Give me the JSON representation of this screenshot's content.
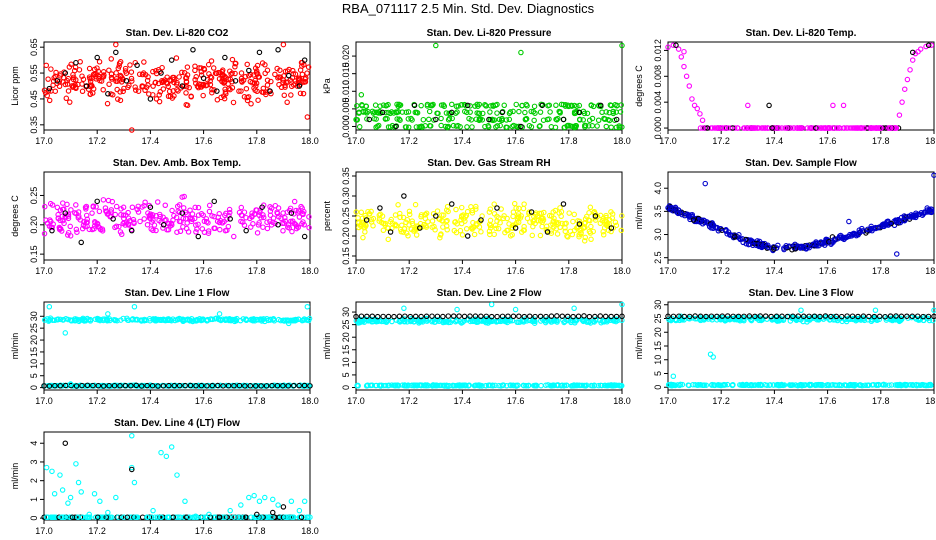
{
  "page_title": "RBA_071117  2.5 Min. Std. Dev. Diagnostics",
  "colors": {
    "red": "#ff0000",
    "green": "#00cc00",
    "magenta": "#ff00ff",
    "yellow": "#ffff00",
    "blue": "#0000cc",
    "cyan": "#00ffff",
    "black": "#000000"
  },
  "chart_data": [
    {
      "type": "scatter",
      "title": "Stan. Dev. Li-820 CO2",
      "ylabel": "Licor ppm",
      "xlim": [
        17.0,
        18.0
      ],
      "ylim": [
        0.33,
        0.67
      ],
      "xticks": [
        "17.0",
        "17.2",
        "17.4",
        "17.6",
        "17.8",
        "18.0"
      ],
      "yticks": [
        0.35,
        0.45,
        0.55,
        0.65
      ],
      "ytick_labels": [
        "0.35",
        "0.45",
        "0.55",
        "0.65"
      ],
      "color": "#ff0000",
      "points_description": "dense band of red points between 0.42 and 0.62 with black points scattered within",
      "main_band": [
        0.42,
        0.62
      ],
      "main_count": 380,
      "black_points": [
        [
          17.02,
          0.49
        ],
        [
          17.05,
          0.52
        ],
        [
          17.08,
          0.55
        ],
        [
          17.12,
          0.59
        ],
        [
          17.16,
          0.5
        ],
        [
          17.2,
          0.61
        ],
        [
          17.24,
          0.47
        ],
        [
          17.27,
          0.63
        ],
        [
          17.31,
          0.52
        ],
        [
          17.35,
          0.58
        ],
        [
          17.4,
          0.45
        ],
        [
          17.44,
          0.55
        ],
        [
          17.48,
          0.6
        ],
        [
          17.52,
          0.5
        ],
        [
          17.56,
          0.64
        ],
        [
          17.6,
          0.53
        ],
        [
          17.65,
          0.48
        ],
        [
          17.68,
          0.61
        ],
        [
          17.72,
          0.52
        ],
        [
          17.77,
          0.56
        ],
        [
          17.81,
          0.63
        ],
        [
          17.85,
          0.48
        ],
        [
          17.88,
          0.64
        ],
        [
          17.92,
          0.54
        ],
        [
          17.96,
          0.5
        ],
        [
          17.98,
          0.6
        ]
      ],
      "outliers": [
        [
          17.33,
          0.33
        ],
        [
          17.9,
          0.66
        ],
        [
          17.27,
          0.66
        ],
        [
          17.99,
          0.38
        ]
      ]
    },
    {
      "type": "scatter",
      "title": "Stan. Dev. Li-820 Pressure",
      "ylabel": "kPa",
      "xlim": [
        17.0,
        18.0
      ],
      "ylim": [
        -0.001,
        0.024
      ],
      "xticks": [
        "17.0",
        "17.2",
        "17.4",
        "17.6",
        "17.8",
        "18.0"
      ],
      "yticks": [
        0.0,
        0.005,
        0.01,
        0.015,
        0.02
      ],
      "ytick_labels": [
        "0.000",
        "0.005",
        "0.010",
        "0.015",
        "0.020"
      ],
      "color": "#00cc00",
      "levels": [
        0.0,
        0.002,
        0.004,
        0.006
      ],
      "main_count": 300,
      "black_points": [
        [
          17.05,
          0.002
        ],
        [
          17.1,
          0.004
        ],
        [
          17.15,
          0.0
        ],
        [
          17.22,
          0.006
        ],
        [
          17.3,
          0.002
        ],
        [
          17.36,
          0.004
        ],
        [
          17.42,
          0.006
        ],
        [
          17.5,
          0.002
        ],
        [
          17.55,
          0.004
        ],
        [
          17.62,
          0.0
        ],
        [
          17.7,
          0.006
        ],
        [
          17.78,
          0.002
        ],
        [
          17.84,
          0.004
        ],
        [
          17.92,
          0.006
        ],
        [
          17.98,
          0.002
        ]
      ],
      "outliers": [
        [
          17.3,
          0.023
        ],
        [
          17.62,
          0.021
        ],
        [
          18.0,
          0.023
        ],
        [
          17.02,
          0.009
        ]
      ]
    },
    {
      "type": "scatter",
      "title": "Stan. Dev. Li-820 Temp.",
      "ylabel": "degrees C",
      "xlim": [
        17.0,
        18.0
      ],
      "ylim": [
        -0.0003,
        0.0133
      ],
      "xticks": [
        "17.0",
        "17.2",
        "17.4",
        "17.6",
        "17.8",
        "18.0"
      ],
      "yticks": [
        0.0,
        0.004,
        0.008,
        0.012
      ],
      "ytick_labels": [
        "0.000",
        "0.004",
        "0.008",
        "0.012"
      ],
      "color": "#ff00ff",
      "description": "high near 0.012 at the start and end of the hour, dropping to 0 in between"
    },
    {
      "type": "scatter",
      "title": "Stan. Dev. Amb. Box Temp.",
      "ylabel": "degrees C",
      "xlim": [
        17.0,
        18.0
      ],
      "ylim": [
        0.14,
        0.29
      ],
      "xticks": [
        "17.0",
        "17.2",
        "17.4",
        "17.6",
        "17.8",
        "18.0"
      ],
      "yticks": [
        0.15,
        0.2,
        0.25
      ],
      "ytick_labels": [
        "0.15",
        "0.20",
        "0.25"
      ],
      "color": "#ff00ff",
      "main_band": [
        0.17,
        0.25
      ],
      "main_count": 320,
      "black_points": [
        [
          17.03,
          0.19
        ],
        [
          17.08,
          0.22
        ],
        [
          17.14,
          0.17
        ],
        [
          17.2,
          0.24
        ],
        [
          17.26,
          0.21
        ],
        [
          17.33,
          0.19
        ],
        [
          17.4,
          0.23
        ],
        [
          17.45,
          0.2
        ],
        [
          17.52,
          0.22
        ],
        [
          17.58,
          0.18
        ],
        [
          17.64,
          0.24
        ],
        [
          17.7,
          0.21
        ],
        [
          17.76,
          0.19
        ],
        [
          17.82,
          0.23
        ],
        [
          17.88,
          0.2
        ],
        [
          17.93,
          0.22
        ],
        [
          17.98,
          0.18
        ]
      ]
    },
    {
      "type": "scatter",
      "title": "Stan. Dev. Gas Stream RH",
      "ylabel": "percent",
      "xlim": [
        17.0,
        18.0
      ],
      "ylim": [
        0.14,
        0.36
      ],
      "xticks": [
        "17.0",
        "17.2",
        "17.4",
        "17.6",
        "17.8",
        "18.0"
      ],
      "yticks": [
        0.15,
        0.2,
        0.25,
        0.3,
        0.35
      ],
      "ytick_labels": [
        "0.15",
        "0.20",
        "0.25",
        "0.30",
        "0.35"
      ],
      "color": "#ffff00",
      "main_band": [
        0.18,
        0.29
      ],
      "main_count": 330,
      "black_points": [
        [
          17.04,
          0.24
        ],
        [
          17.09,
          0.27
        ],
        [
          17.13,
          0.21
        ],
        [
          17.18,
          0.3
        ],
        [
          17.24,
          0.22
        ],
        [
          17.3,
          0.25
        ],
        [
          17.36,
          0.28
        ],
        [
          17.42,
          0.2
        ],
        [
          17.47,
          0.24
        ],
        [
          17.53,
          0.27
        ],
        [
          17.6,
          0.22
        ],
        [
          17.66,
          0.26
        ],
        [
          17.72,
          0.21
        ],
        [
          17.78,
          0.28
        ],
        [
          17.84,
          0.23
        ],
        [
          17.9,
          0.25
        ],
        [
          17.96,
          0.22
        ]
      ]
    },
    {
      "type": "scatter",
      "title": "Stan. Dev. Sample Flow",
      "ylabel": "ml/min",
      "xlim": [
        17.0,
        18.0
      ],
      "ylim": [
        2.45,
        4.35
      ],
      "xticks": [
        "17.0",
        "17.2",
        "17.4",
        "17.6",
        "17.8",
        "18.0"
      ],
      "yticks": [
        2.5,
        3.0,
        3.5,
        4.0
      ],
      "ytick_labels": [
        "2.5",
        "3.0",
        "3.5",
        "4.0"
      ],
      "color": "#0000cc",
      "curve": [
        [
          17.0,
          3.6
        ],
        [
          17.1,
          3.35
        ],
        [
          17.2,
          3.1
        ],
        [
          17.3,
          2.85
        ],
        [
          17.4,
          2.7
        ],
        [
          17.5,
          2.72
        ],
        [
          17.6,
          2.85
        ],
        [
          17.7,
          3.0
        ],
        [
          17.8,
          3.2
        ],
        [
          17.9,
          3.35
        ],
        [
          18.0,
          3.55
        ]
      ],
      "outliers": [
        [
          17.14,
          4.1
        ],
        [
          17.68,
          3.28
        ],
        [
          18.0,
          4.28
        ],
        [
          17.86,
          2.58
        ]
      ]
    },
    {
      "type": "scatter",
      "title": "Stan. Dev. Line 1 Flow",
      "ylabel": "ml/min",
      "xlim": [
        17.0,
        18.0
      ],
      "ylim": [
        -1,
        36
      ],
      "xticks": [
        "17.0",
        "17.2",
        "17.4",
        "17.6",
        "17.8",
        "18.0"
      ],
      "yticks": [
        0,
        5,
        10,
        15,
        20,
        25,
        30
      ],
      "ytick_labels": [
        "0",
        "5",
        "10",
        "15",
        "20",
        "25",
        "30"
      ],
      "color": "#00ffff",
      "bands": [
        [
          28.5,
          0.9
        ],
        [
          0.8,
          0.3
        ]
      ],
      "black_level": 0.8,
      "outliers": [
        [
          17.02,
          34
        ],
        [
          17.08,
          23
        ],
        [
          17.24,
          31
        ],
        [
          17.34,
          34
        ],
        [
          17.1,
          1.5
        ],
        [
          17.66,
          31
        ],
        [
          17.99,
          34
        ],
        [
          17.92,
          27
        ]
      ]
    },
    {
      "type": "scatter",
      "title": "Stan. Dev. Line 2 Flow",
      "ylabel": "ml/min",
      "xlim": [
        17.0,
        18.0
      ],
      "ylim": [
        -1,
        34
      ],
      "xticks": [
        "17.0",
        "17.2",
        "17.4",
        "17.6",
        "17.8",
        "18.0"
      ],
      "yticks": [
        0,
        5,
        10,
        15,
        20,
        25,
        30
      ],
      "ytick_labels": [
        "0",
        "5",
        "10",
        "15",
        "20",
        "25",
        "30"
      ],
      "color": "#00ffff",
      "bands": [
        [
          26.5,
          1.2
        ],
        [
          0.8,
          0.3
        ]
      ],
      "black_level": 28.3,
      "outliers": [
        [
          17.18,
          31.5
        ],
        [
          17.38,
          31
        ],
        [
          17.51,
          33
        ],
        [
          17.6,
          31
        ],
        [
          17.82,
          31.5
        ],
        [
          18.0,
          33
        ]
      ]
    },
    {
      "type": "scatter",
      "title": "Stan. Dev. Line 3 Flow",
      "ylabel": "ml/min",
      "xlim": [
        17.0,
        18.0
      ],
      "ylim": [
        -1,
        31
      ],
      "xticks": [
        "17.0",
        "17.2",
        "17.4",
        "17.6",
        "17.8",
        "18.0"
      ],
      "yticks": [
        0,
        5,
        10,
        15,
        20,
        25,
        30
      ],
      "ytick_labels": [
        "0",
        "5",
        "10",
        "15",
        "20",
        "25",
        "30"
      ],
      "color": "#00ffff",
      "bands": [
        [
          24.8,
          1.2
        ],
        [
          0.8,
          0.3
        ]
      ],
      "black_level": 25.8,
      "outliers": [
        [
          17.02,
          4
        ],
        [
          17.16,
          12
        ],
        [
          17.17,
          11
        ],
        [
          17.5,
          28
        ],
        [
          17.78,
          28
        ],
        [
          18.0,
          28
        ]
      ]
    },
    {
      "type": "scatter",
      "title": "Stan. Dev. Line 4 (LT) Flow",
      "ylabel": "ml/min",
      "xlim": [
        17.0,
        18.0
      ],
      "ylim": [
        -0.1,
        4.6
      ],
      "xticks": [
        "17.0",
        "17.2",
        "17.4",
        "17.6",
        "17.8",
        "18.0"
      ],
      "yticks": [
        0,
        1,
        2,
        3,
        4
      ],
      "ytick_labels": [
        "0",
        "1",
        "2",
        "3",
        "4"
      ],
      "color": "#00ffff",
      "baseline": 0.05,
      "cyan_points": [
        [
          17.01,
          2.7
        ],
        [
          17.03,
          2.5
        ],
        [
          17.04,
          1.3
        ],
        [
          17.06,
          2.3
        ],
        [
          17.07,
          1.5
        ],
        [
          17.09,
          0.8
        ],
        [
          17.1,
          1.1
        ],
        [
          17.12,
          2.9
        ],
        [
          17.13,
          1.9
        ],
        [
          17.14,
          1.4
        ],
        [
          17.17,
          0.2
        ],
        [
          17.19,
          1.3
        ],
        [
          17.21,
          0.9
        ],
        [
          17.24,
          0.3
        ],
        [
          17.27,
          1.1
        ],
        [
          17.33,
          4.4
        ],
        [
          17.33,
          2.7
        ],
        [
          17.34,
          1.9
        ],
        [
          17.41,
          0.4
        ],
        [
          17.44,
          3.5
        ],
        [
          17.46,
          3.3
        ],
        [
          17.48,
          3.8
        ],
        [
          17.5,
          2.3
        ],
        [
          17.53,
          0.9
        ],
        [
          17.57,
          0.1
        ],
        [
          17.62,
          0.2
        ],
        [
          17.7,
          0.4
        ],
        [
          17.74,
          0.7
        ],
        [
          17.77,
          1.1
        ],
        [
          17.79,
          1.2
        ],
        [
          17.81,
          0.9
        ],
        [
          17.83,
          1.1
        ],
        [
          17.86,
          1.0
        ],
        [
          17.88,
          0.7
        ],
        [
          17.93,
          0.9
        ],
        [
          17.96,
          0.4
        ],
        [
          17.98,
          0.9
        ]
      ],
      "black_points": [
        [
          17.08,
          4.0
        ],
        [
          17.33,
          2.6
        ],
        [
          17.86,
          0.3
        ],
        [
          17.9,
          0.6
        ],
        [
          17.8,
          0.2
        ]
      ]
    }
  ]
}
